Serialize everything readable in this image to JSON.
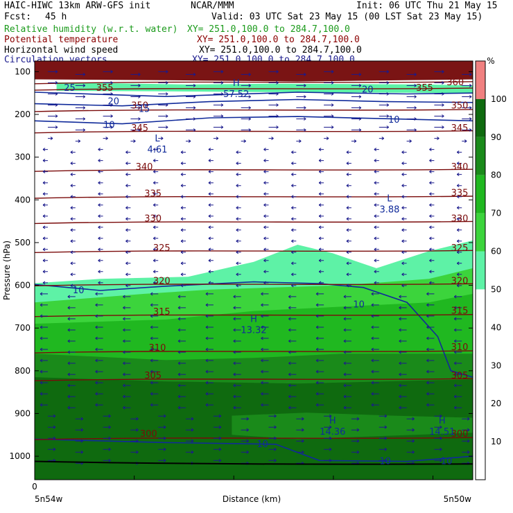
{
  "header": {
    "model": "HAIC-HIWC 13km ARW-GFS init",
    "center": "NCAR/MMM",
    "init": "Init: 06 UTC Thu 21 May 15",
    "fcst_label": "Fcst:",
    "fcst_value": "45 h",
    "valid": "Valid: 03 UTC Sat 23 May 15 (00 LST Sat 23 May 15)"
  },
  "fields": [
    {
      "label": "Relative humidity (w.r.t. water)",
      "xy": "XY= 251.0,100.0 to 284.7,100.0",
      "color": "#1a9a1a"
    },
    {
      "label": "Potential temperature",
      "xy": "XY= 251.0,100.0 to 284.7,100.0",
      "color": "#8b0000"
    },
    {
      "label": "Horizontal wind speed",
      "xy": "XY= 251.0,100.0 to 284.7,100.0",
      "color": "#000000"
    },
    {
      "label": "Circulation vectors",
      "xy": "XY= 251.0,100.0 to 284.7,100.0",
      "color": "#1a1a8c"
    }
  ],
  "chart_data": {
    "type": "heatmap",
    "xlabel": "Distance (km)",
    "ylabel": "Pressure (hPa)",
    "x_ticks": [
      "0"
    ],
    "x_left_label": "5n54w",
    "x_right_label": "5n50w",
    "y_ticks": [
      100,
      200,
      300,
      400,
      500,
      600,
      700,
      800,
      900,
      1000
    ],
    "y_range": [
      75,
      1055
    ],
    "colorbar": {
      "unit": "%",
      "levels": [
        10,
        20,
        30,
        40,
        50,
        60,
        70,
        80,
        90,
        100
      ],
      "colors": [
        "#ffffff",
        "#ffffff",
        "#ffffff",
        "#ffffff",
        "#ffffff",
        "#5ef2a6",
        "#3cd43c",
        "#20b820",
        "#1a8a1a",
        "#0f6a0f",
        "#f08080"
      ]
    },
    "theta_contours": [
      {
        "value": 300,
        "p": 958
      },
      {
        "value": 305,
        "p": 820
      },
      {
        "value": 310,
        "p": 755
      },
      {
        "value": 315,
        "p": 670
      },
      {
        "value": 320,
        "p": 598
      },
      {
        "value": 325,
        "p": 520
      },
      {
        "value": 330,
        "p": 452
      },
      {
        "value": 335,
        "p": 393
      },
      {
        "value": 340,
        "p": 330
      },
      {
        "value": 345,
        "p": 240
      },
      {
        "value": 350,
        "p": 190
      },
      {
        "value": 355,
        "p": 140
      },
      {
        "value": 360,
        "p": 125
      }
    ],
    "theta_labels": [
      {
        "text": "300",
        "x": 0.26,
        "p": 948
      },
      {
        "text": "300",
        "x": 0.97,
        "p": 948
      },
      {
        "text": "305",
        "x": 0.27,
        "p": 812
      },
      {
        "text": "305",
        "x": 0.97,
        "p": 812
      },
      {
        "text": "310",
        "x": 0.28,
        "p": 747
      },
      {
        "text": "310",
        "x": 0.97,
        "p": 745
      },
      {
        "text": "315",
        "x": 0.29,
        "p": 662
      },
      {
        "text": "315",
        "x": 0.97,
        "p": 660
      },
      {
        "text": "320",
        "x": 0.29,
        "p": 590
      },
      {
        "text": "320",
        "x": 0.97,
        "p": 590
      },
      {
        "text": "325",
        "x": 0.29,
        "p": 513
      },
      {
        "text": "325",
        "x": 0.97,
        "p": 513
      },
      {
        "text": "330",
        "x": 0.27,
        "p": 444
      },
      {
        "text": "330",
        "x": 0.97,
        "p": 444
      },
      {
        "text": "335",
        "x": 0.27,
        "p": 386
      },
      {
        "text": "335",
        "x": 0.97,
        "p": 384
      },
      {
        "text": "340",
        "x": 0.25,
        "p": 323
      },
      {
        "text": "340",
        "x": 0.97,
        "p": 323
      },
      {
        "text": "345",
        "x": 0.24,
        "p": 232
      },
      {
        "text": "345",
        "x": 0.97,
        "p": 232
      },
      {
        "text": "350",
        "x": 0.24,
        "p": 180
      },
      {
        "text": "350",
        "x": 0.97,
        "p": 180
      },
      {
        "text": "355",
        "x": 0.16,
        "p": 138
      },
      {
        "text": "355",
        "x": 0.89,
        "p": 138
      },
      {
        "text": "360",
        "x": 0.96,
        "p": 125
      }
    ],
    "wind_labels": [
      {
        "text": "10",
        "x": 0.17,
        "p": 225
      },
      {
        "text": "15",
        "x": 0.25,
        "p": 188
      },
      {
        "text": "20",
        "x": 0.18,
        "p": 170
      },
      {
        "text": "20",
        "x": 0.76,
        "p": 142
      },
      {
        "text": "25",
        "x": 0.08,
        "p": 138
      },
      {
        "text": "10",
        "x": 0.82,
        "p": 213
      },
      {
        "text": "10",
        "x": 0.1,
        "p": 612
      },
      {
        "text": "10",
        "x": 0.74,
        "p": 645
      },
      {
        "text": "10",
        "x": 0.52,
        "p": 972
      },
      {
        "text": "10",
        "x": 0.8,
        "p": 1012
      },
      {
        "text": "10",
        "x": 0.94,
        "p": 1012
      }
    ],
    "extrema": [
      {
        "type": "L",
        "value": "4.61",
        "x": 0.28,
        "p": 270
      },
      {
        "type": "L",
        "value": "3.88",
        "x": 0.81,
        "p": 410
      },
      {
        "type": "H",
        "value": "13.32",
        "x": 0.5,
        "p": 692
      },
      {
        "type": "H",
        "value": "14.36",
        "x": 0.68,
        "p": 930
      },
      {
        "type": "H",
        "value": "14.51",
        "x": 0.93,
        "p": 930
      },
      {
        "type": "H",
        "value": "57.52",
        "x": 0.46,
        "p": 140
      }
    ]
  }
}
